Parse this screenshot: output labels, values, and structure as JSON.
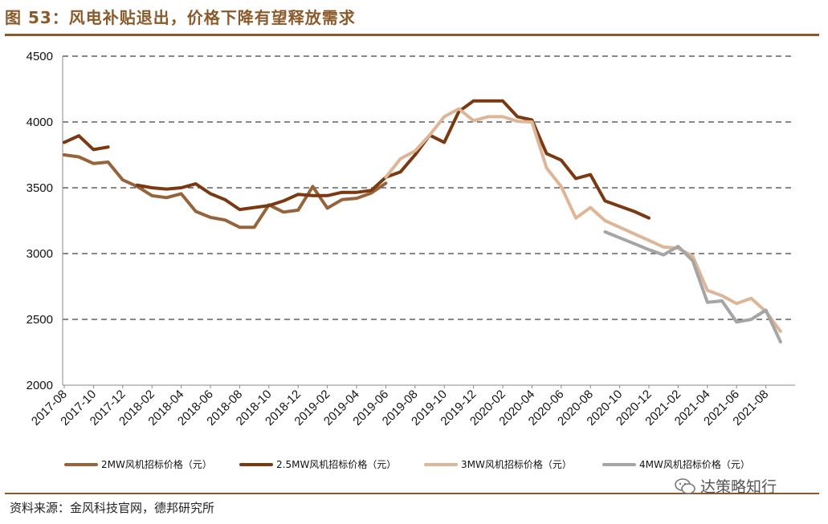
{
  "header": {
    "title": "图 53：风电补贴退出，价格下降有望释放需求"
  },
  "footer": {
    "source": "资料来源：金风科技官网，德邦研究所",
    "watermark": "达策略知行"
  },
  "chart_data": {
    "type": "line",
    "title": "",
    "xlabel": "",
    "ylabel": "",
    "ylim": [
      2000,
      4500
    ],
    "y_ticks": [
      2000,
      2500,
      3000,
      3500,
      4000,
      4500
    ],
    "grid": "horizontal-dashed",
    "legend_position": "bottom",
    "x_ticks": [
      "2017-08",
      "2017-10",
      "2017-12",
      "2018-02",
      "2018-04",
      "2018-06",
      "2018-08",
      "2018-10",
      "2018-12",
      "2019-02",
      "2019-04",
      "2019-06",
      "2019-08",
      "2019-10",
      "2019-12",
      "2020-02",
      "2020-04",
      "2020-06",
      "2020-08",
      "2020-10",
      "2020-12",
      "2021-02",
      "2021-04",
      "2021-06",
      "2021-08"
    ],
    "months": [
      "2017-08",
      "2017-09",
      "2017-10",
      "2017-11",
      "2017-12",
      "2018-01",
      "2018-02",
      "2018-03",
      "2018-04",
      "2018-05",
      "2018-06",
      "2018-07",
      "2018-08",
      "2018-09",
      "2018-10",
      "2018-11",
      "2018-12",
      "2019-01",
      "2019-02",
      "2019-03",
      "2019-04",
      "2019-05",
      "2019-06",
      "2019-07",
      "2019-08",
      "2019-09",
      "2019-10",
      "2019-11",
      "2019-12",
      "2020-01",
      "2020-02",
      "2020-03",
      "2020-04",
      "2020-05",
      "2020-06",
      "2020-07",
      "2020-08",
      "2020-09",
      "2020-10",
      "2020-11",
      "2020-12",
      "2021-01",
      "2021-02",
      "2021-03",
      "2021-04",
      "2021-05",
      "2021-06",
      "2021-07",
      "2021-08",
      "2021-09"
    ],
    "series": [
      {
        "name": "2MW风机招标价格（元）",
        "color": "#96633a",
        "start": "2017-08",
        "values": [
          3750,
          3735,
          3685,
          3695,
          3560,
          3510,
          3440,
          3425,
          3455,
          3320,
          3275,
          3255,
          3200,
          3200,
          3370,
          3315,
          3330,
          3510,
          3345,
          3410,
          3420,
          3460,
          3535
        ]
      },
      {
        "name": "2.5MW风机招标价格（元）",
        "color": "#7a3910",
        "start": "2017-08",
        "values": [
          3845,
          3895,
          3790,
          3810,
          null,
          3520,
          3500,
          3490,
          3500,
          3530,
          3455,
          3410,
          3335,
          3350,
          3365,
          3400,
          3450,
          3440,
          3440,
          3465,
          3465,
          3480,
          3580,
          3620,
          3750,
          3900,
          3845,
          4080,
          4160,
          4160,
          4160,
          4040,
          4015,
          3760,
          3710,
          3570,
          3600,
          3400,
          3360,
          3320,
          3270
        ]
      },
      {
        "name": "3MW风机招标价格（元）",
        "color": "#deb596",
        "start": "2019-06",
        "values": [
          3580,
          3720,
          3780,
          3900,
          4040,
          4100,
          4010,
          4040,
          4040,
          4005,
          4000,
          3650,
          3510,
          3270,
          3350,
          3250,
          3200,
          3150,
          3100,
          3050,
          3040,
          2980,
          2720,
          2680,
          2620,
          2660,
          2560,
          2410
        ]
      },
      {
        "name": "4MW风机招标价格（元）",
        "color": "#a5a5a5",
        "start": "2020-09",
        "values": [
          3165,
          3120,
          3075,
          3030,
          2990,
          3055,
          2945,
          2630,
          2640,
          2480,
          2500,
          2570,
          2330
        ]
      }
    ]
  }
}
